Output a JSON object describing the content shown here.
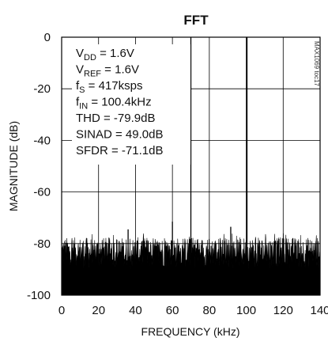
{
  "chart_data": {
    "type": "line",
    "title": "FFT",
    "xlabel": "FREQUENCY (kHz)",
    "ylabel": "MAGNITUDE (dB)",
    "xlim": [
      0,
      140
    ],
    "ylim": [
      -100,
      0
    ],
    "xticks": [
      0,
      20,
      40,
      60,
      80,
      100,
      120,
      140
    ],
    "yticks": [
      0,
      -20,
      -40,
      -60,
      -80,
      -100
    ],
    "grid": true,
    "annotations": [
      {
        "label": "V",
        "sub": "DD",
        "rest": " = 1.6V"
      },
      {
        "label": "V",
        "sub": "REF",
        "rest": " = 1.6V"
      },
      {
        "label": "f",
        "sub": "S",
        "rest": " = 417ksps"
      },
      {
        "label": "f",
        "sub": "IN",
        "rest": " = 100.4kHz"
      },
      {
        "label": "THD = -79.9dB",
        "sub": "",
        "rest": ""
      },
      {
        "label": "SINAD = 49.0dB",
        "sub": "",
        "rest": ""
      },
      {
        "label": "SFDR = -71.1dB",
        "sub": "",
        "rest": ""
      }
    ],
    "noise_floor_db": -91,
    "noise_range_db": [
      -100,
      -76
    ],
    "tones": [
      {
        "x": 100.4,
        "y": 0
      },
      {
        "x": 70.0,
        "y": 0
      },
      {
        "x": 60.0,
        "y": -71.5
      },
      {
        "x": 36.0,
        "y": -74.5
      },
      {
        "x": 91.6,
        "y": -73.5
      }
    ]
  },
  "side_text": "MAX1069 toc17"
}
